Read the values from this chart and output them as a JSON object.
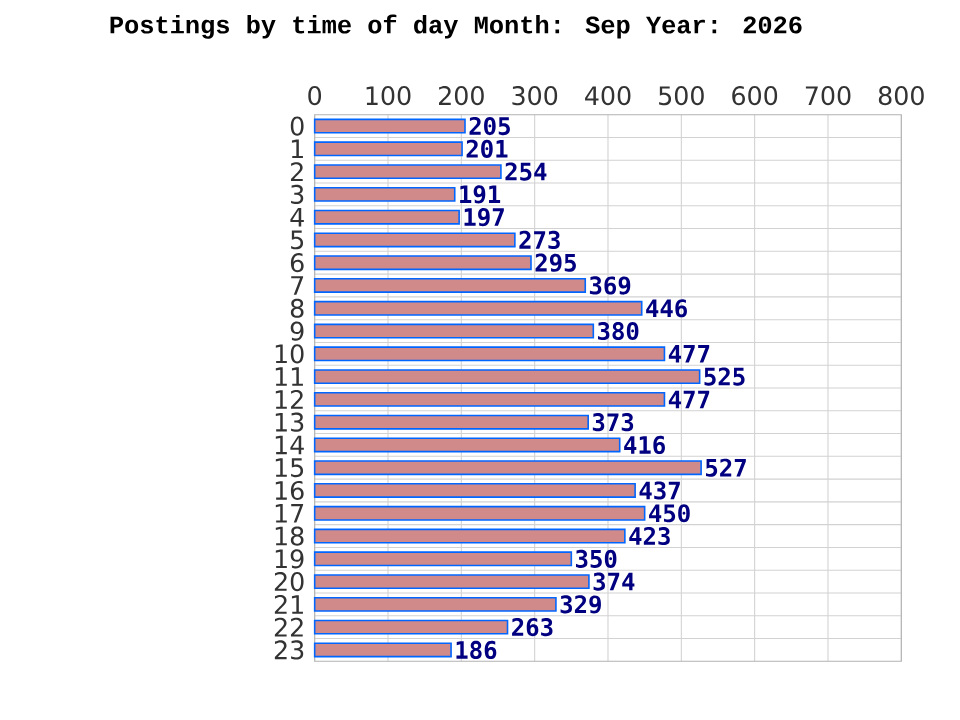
{
  "chart_data": {
    "type": "bar",
    "orientation": "horizontal",
    "title": "Postings by time of day Month: Sep   Year: 2026",
    "categories": [
      "0",
      "1",
      "2",
      "3",
      "4",
      "5",
      "6",
      "7",
      "8",
      "9",
      "10",
      "11",
      "12",
      "13",
      "14",
      "15",
      "16",
      "17",
      "18",
      "19",
      "20",
      "21",
      "22",
      "23"
    ],
    "values": [
      205,
      201,
      254,
      191,
      197,
      273,
      295,
      369,
      446,
      380,
      477,
      525,
      477,
      373,
      416,
      527,
      437,
      450,
      423,
      350,
      374,
      329,
      263,
      186
    ],
    "color": "#d08a8a",
    "xlim": [
      0,
      800
    ],
    "xticks": [
      0,
      100,
      200,
      300,
      400,
      500,
      600,
      700,
      800
    ],
    "grid": true,
    "data_labels": true
  }
}
